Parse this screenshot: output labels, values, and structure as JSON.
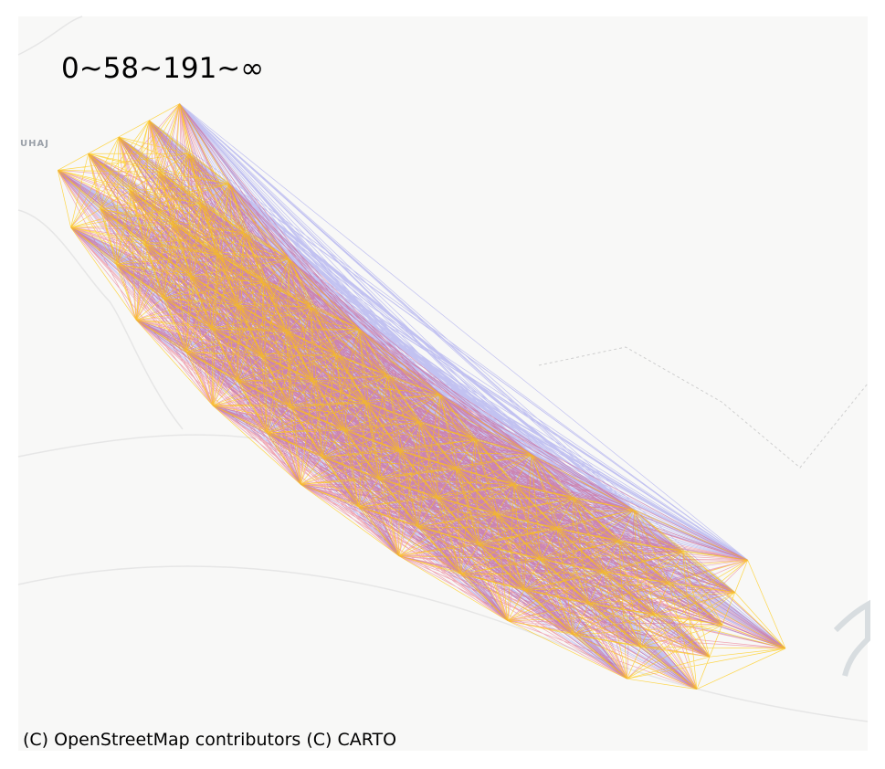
{
  "map": {
    "legend_text": "0~58~191~∞",
    "place_labels": [
      "UHAJ"
    ],
    "attribution": "(C) OpenStreetMap contributors (C) CARTO"
  }
}
